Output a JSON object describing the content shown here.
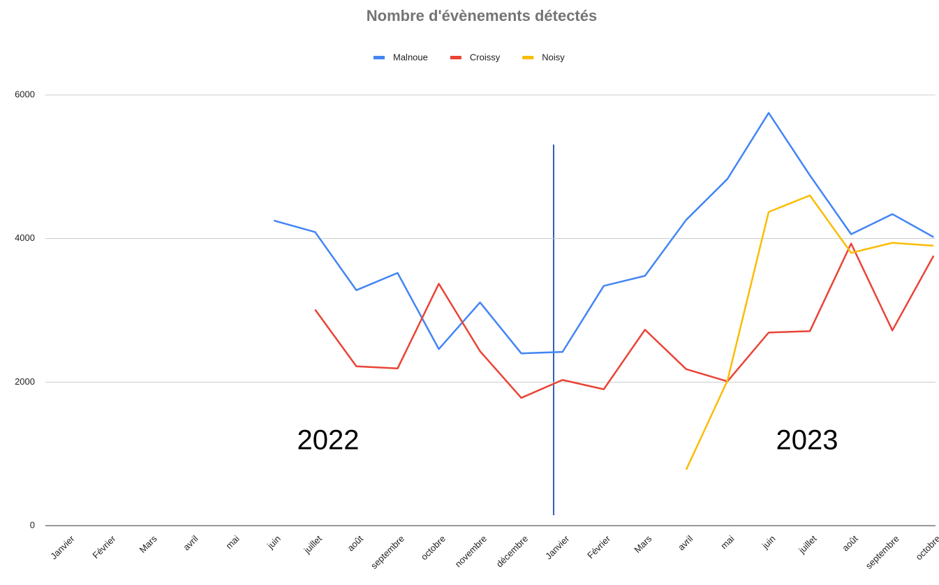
{
  "chart_data": {
    "type": "line",
    "title": "Nombre d'évènements détectés",
    "categories": [
      "Janvier",
      "Février",
      "Mars",
      "avril",
      "mai",
      "juin",
      "juillet",
      "août",
      "septembre",
      "octobre",
      "novembre",
      "décembre",
      "Janvier",
      "Février",
      "Mars",
      "avril",
      "mai",
      "juin",
      "juillet",
      "août",
      "septembre",
      "octobre"
    ],
    "series": [
      {
        "name": "Malnoue",
        "color": "#4285f4",
        "values": [
          null,
          null,
          null,
          null,
          null,
          4250,
          4090,
          3280,
          3520,
          2460,
          3110,
          2400,
          2420,
          3340,
          3480,
          4260,
          4830,
          5750,
          4880,
          4060,
          4340,
          4020
        ]
      },
      {
        "name": "Croissy",
        "color": "#ea4335",
        "values": [
          null,
          null,
          null,
          null,
          null,
          null,
          3010,
          2220,
          2190,
          3370,
          2430,
          1780,
          2030,
          1900,
          2730,
          2180,
          2010,
          2690,
          2710,
          3930,
          2720,
          3760
        ]
      },
      {
        "name": "Noisy",
        "color": "#fbbc04",
        "values": [
          null,
          null,
          null,
          null,
          null,
          null,
          null,
          null,
          null,
          null,
          null,
          null,
          null,
          null,
          null,
          780,
          2020,
          4370,
          4600,
          3800,
          3940,
          3900
        ]
      }
    ],
    "ylim": [
      0,
      6000
    ],
    "yticks": [
      0,
      2000,
      4000,
      6000
    ],
    "grid": true,
    "legend": "top",
    "annotations": [
      "2022",
      "2023"
    ]
  }
}
